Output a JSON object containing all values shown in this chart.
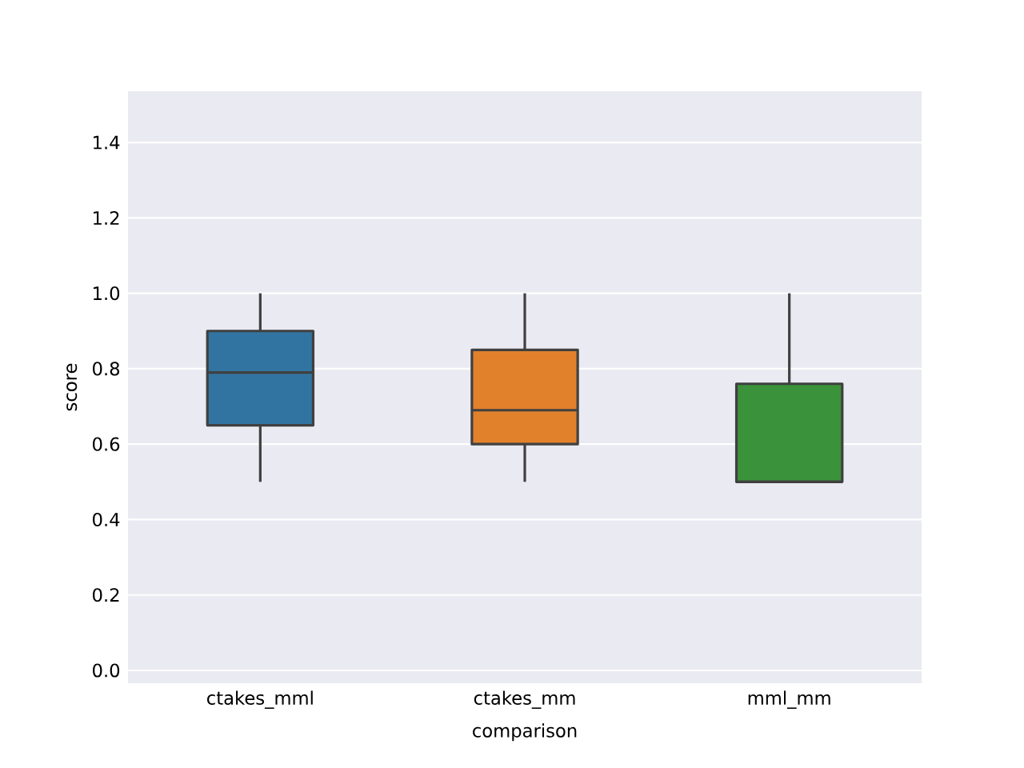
{
  "chart_data": {
    "type": "box",
    "xlabel": "comparison",
    "ylabel": "score",
    "categories": [
      "ctakes_mml",
      "ctakes_mm",
      "mml_mm"
    ],
    "colors": [
      "#3274a1",
      "#e1812c",
      "#3a923a"
    ],
    "boxes": [
      {
        "low": 0.5,
        "q1": 0.65,
        "median": 0.79,
        "q3": 0.9,
        "high": 1.0
      },
      {
        "low": 0.5,
        "q1": 0.6,
        "median": 0.69,
        "q3": 0.85,
        "high": 1.0
      },
      {
        "low": 0.5,
        "q1": 0.5,
        "median": 0.5,
        "q3": 0.76,
        "high": 1.0
      }
    ],
    "ylim": [
      -0.034,
      1.536
    ],
    "yticks": [
      {
        "value": 0,
        "label": "0.0"
      },
      {
        "value": 0.2,
        "label": "0.2"
      },
      {
        "value": 0.4,
        "label": "0.4"
      },
      {
        "value": 0.6,
        "label": "0.6"
      },
      {
        "value": 0.8,
        "label": "0.8"
      },
      {
        "value": 1.0,
        "label": "1.0"
      },
      {
        "value": 1.2,
        "label": "1.2"
      },
      {
        "value": 1.4,
        "label": "1.4"
      }
    ],
    "grid": "y"
  }
}
